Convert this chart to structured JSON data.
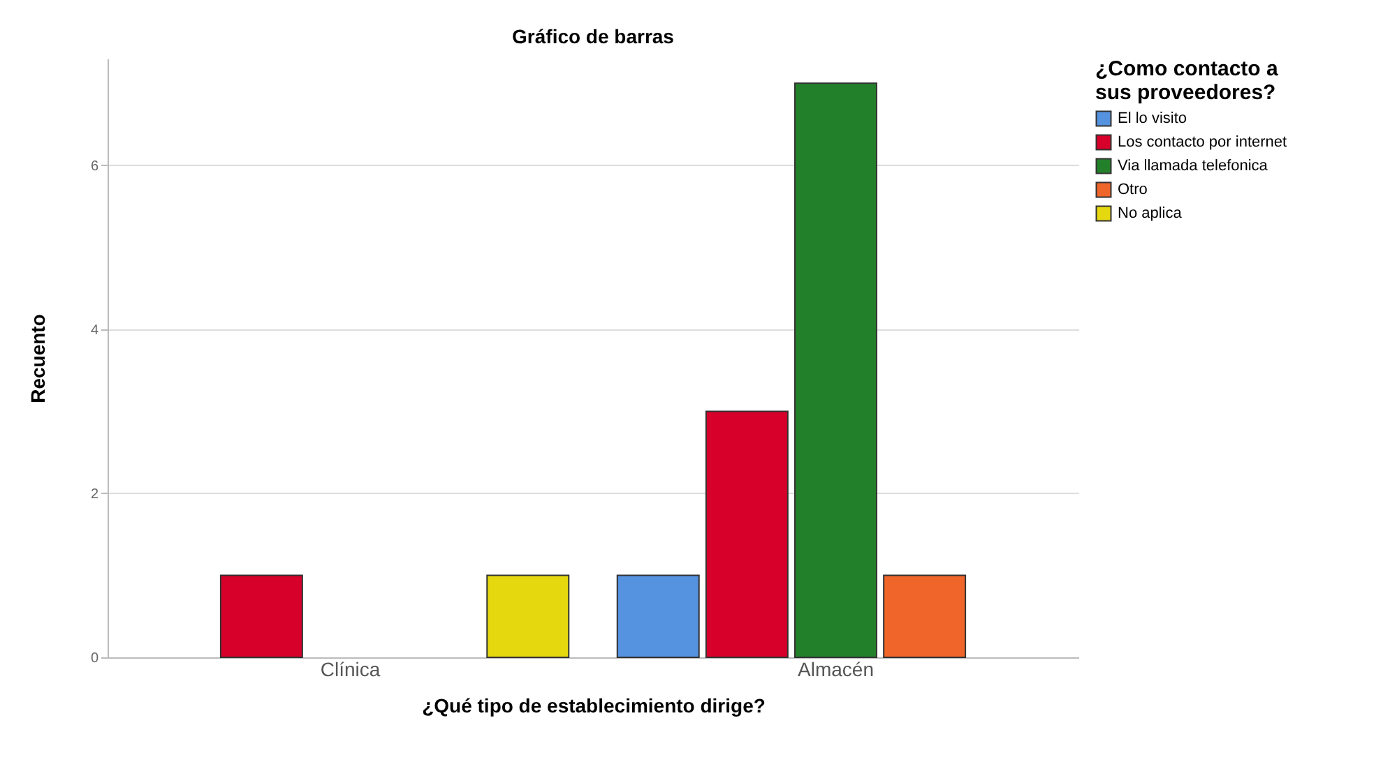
{
  "chart_data": {
    "type": "bar",
    "title": "Gráfico de barras",
    "xlabel": "¿Qué tipo de establecimiento dirige?",
    "ylabel": "Recuento",
    "legend_title": "¿Como contacto a sus proveedores?",
    "categories": [
      "Clínica",
      "Almacén"
    ],
    "series": [
      {
        "name": "El lo visito",
        "color": "#5592e0",
        "values": [
          null,
          1
        ]
      },
      {
        "name": "Los contacto por internet",
        "color": "#d6002a",
        "values": [
          1,
          3
        ]
      },
      {
        "name": "Via llamada telefonica",
        "color": "#23802a",
        "values": [
          null,
          7
        ]
      },
      {
        "name": "Otro",
        "color": "#f0652a",
        "values": [
          null,
          1
        ]
      },
      {
        "name": "No aplica",
        "color": "#e6d80f",
        "values": [
          1,
          null
        ]
      }
    ],
    "ylim": [
      0,
      7.3
    ],
    "yticks": [
      0,
      2,
      4,
      6
    ],
    "grid": "y",
    "legend": "top right"
  }
}
